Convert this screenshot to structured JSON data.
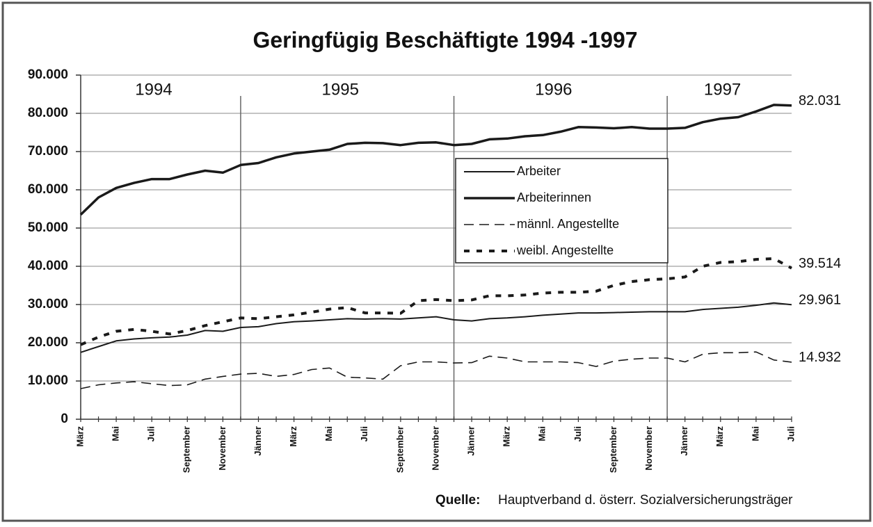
{
  "chart_data": {
    "type": "line",
    "title": "Geringfügig Beschäftigte 1994 -1997",
    "categories": [
      "März",
      null,
      "Mai",
      null,
      "Juli",
      null,
      "September",
      null,
      "November",
      null,
      "Jänner",
      null,
      "März",
      null,
      "Mai",
      null,
      "Juli",
      null,
      "September",
      null,
      "November",
      null,
      "Jänner",
      null,
      "März",
      null,
      "Mai",
      null,
      "Juli",
      null,
      "September",
      null,
      "November",
      null,
      "Jänner",
      null,
      "März",
      null,
      "Mai",
      null,
      "Juli"
    ],
    "years": [
      "1994",
      "1995",
      "1996",
      "1997"
    ],
    "ylim": [
      0,
      90000
    ],
    "yticks": [
      0,
      {
        "value": 10000,
        "label": "10.000"
      },
      {
        "value": 20000,
        "label": "20.000"
      },
      {
        "value": 30000,
        "label": "30.000"
      },
      {
        "value": 40000,
        "label": "40.000"
      },
      {
        "value": 50000,
        "label": "50.000"
      },
      {
        "value": 60000,
        "label": "60.000"
      },
      {
        "value": 70000,
        "label": "70.000"
      },
      {
        "value": 80000,
        "label": "80.000"
      },
      {
        "value": 90000,
        "label": "90.000"
      }
    ],
    "grid": true,
    "legend": "center",
    "series": [
      {
        "name": "Arbeiter",
        "color": "#1a1a1a",
        "line_style": "solid",
        "values": [
          17500,
          19000,
          20500,
          21000,
          21300,
          21500,
          22000,
          23200,
          23000,
          24000,
          24200,
          25000,
          25500,
          25700,
          26000,
          26300,
          26200,
          26300,
          26200,
          26500,
          26800,
          26000,
          25700,
          26300,
          26500,
          26800,
          27200,
          27500,
          27800,
          27800,
          27900,
          28000,
          28100,
          28100,
          28100,
          28700,
          29000,
          29300,
          29800,
          30400,
          29961
        ],
        "value_labels": [
          null,
          null,
          null,
          null,
          null,
          null,
          null,
          null,
          null,
          null,
          null,
          null,
          null,
          null,
          null,
          null,
          null,
          null,
          null,
          null,
          null,
          null,
          null,
          null,
          null,
          null,
          null,
          null,
          null,
          null,
          null,
          null,
          null,
          null,
          null,
          null,
          null,
          null,
          null,
          null,
          "29.961"
        ]
      },
      {
        "name": "Arbeiterinnen",
        "color": "#1a1a1a",
        "line_style": "bold",
        "values": [
          53500,
          58000,
          60500,
          61800,
          62800,
          62800,
          64000,
          65000,
          64500,
          66500,
          67000,
          68500,
          69500,
          70000,
          70500,
          72000,
          72300,
          72200,
          71700,
          72300,
          72400,
          71700,
          72000,
          73200,
          73400,
          74000,
          74300,
          75200,
          76400,
          76300,
          76100,
          76400,
          76000,
          76000,
          76200,
          77700,
          78600,
          79000,
          80500,
          82200,
          82031
        ],
        "value_labels": [
          null,
          null,
          null,
          null,
          null,
          null,
          null,
          null,
          null,
          null,
          null,
          null,
          null,
          null,
          null,
          null,
          null,
          null,
          null,
          null,
          null,
          null,
          null,
          null,
          null,
          null,
          null,
          null,
          null,
          null,
          null,
          null,
          null,
          null,
          null,
          null,
          null,
          null,
          null,
          null,
          "82.031"
        ]
      },
      {
        "name": "männl. Angestellte",
        "color": "#1a1a1a",
        "line_style": "dashed",
        "values": [
          8000,
          9000,
          9500,
          9800,
          9300,
          8800,
          9000,
          10500,
          11200,
          11800,
          12000,
          11200,
          11700,
          13000,
          13400,
          11000,
          10800,
          10500,
          14000,
          15000,
          15000,
          14700,
          14800,
          16500,
          16000,
          15000,
          15000,
          15000,
          14800,
          13800,
          15200,
          15700,
          16000,
          16000,
          15000,
          17000,
          17400,
          17400,
          17600,
          15500,
          14932
        ],
        "value_labels": [
          null,
          null,
          null,
          null,
          null,
          null,
          null,
          null,
          null,
          null,
          null,
          null,
          null,
          null,
          null,
          null,
          null,
          null,
          null,
          null,
          null,
          null,
          null,
          null,
          null,
          null,
          null,
          null,
          null,
          null,
          null,
          null,
          null,
          null,
          null,
          null,
          null,
          null,
          null,
          null,
          "14.932"
        ]
      },
      {
        "name": "weibl. Angestellte",
        "color": "#1a1a1a",
        "line_style": "bold-dashed",
        "values": [
          19500,
          21500,
          23000,
          23500,
          23000,
          22300,
          23200,
          24500,
          25500,
          26500,
          26300,
          26800,
          27300,
          28000,
          28800,
          29200,
          27800,
          27800,
          27700,
          31000,
          31300,
          31000,
          31200,
          32300,
          32300,
          32500,
          33000,
          33200,
          33200,
          33500,
          35000,
          36000,
          36500,
          36700,
          37200,
          40000,
          41000,
          41200,
          41800,
          42000,
          39514
        ],
        "value_labels": [
          null,
          null,
          null,
          null,
          null,
          null,
          null,
          null,
          null,
          null,
          null,
          null,
          null,
          null,
          null,
          null,
          null,
          null,
          null,
          null,
          null,
          null,
          null,
          null,
          null,
          null,
          null,
          null,
          null,
          null,
          null,
          null,
          null,
          null,
          null,
          null,
          null,
          null,
          null,
          null,
          "39.514"
        ]
      }
    ],
    "source_label": "Quelle:",
    "source": "Hauptverband d. österr. Sozialversicherungsträger"
  }
}
